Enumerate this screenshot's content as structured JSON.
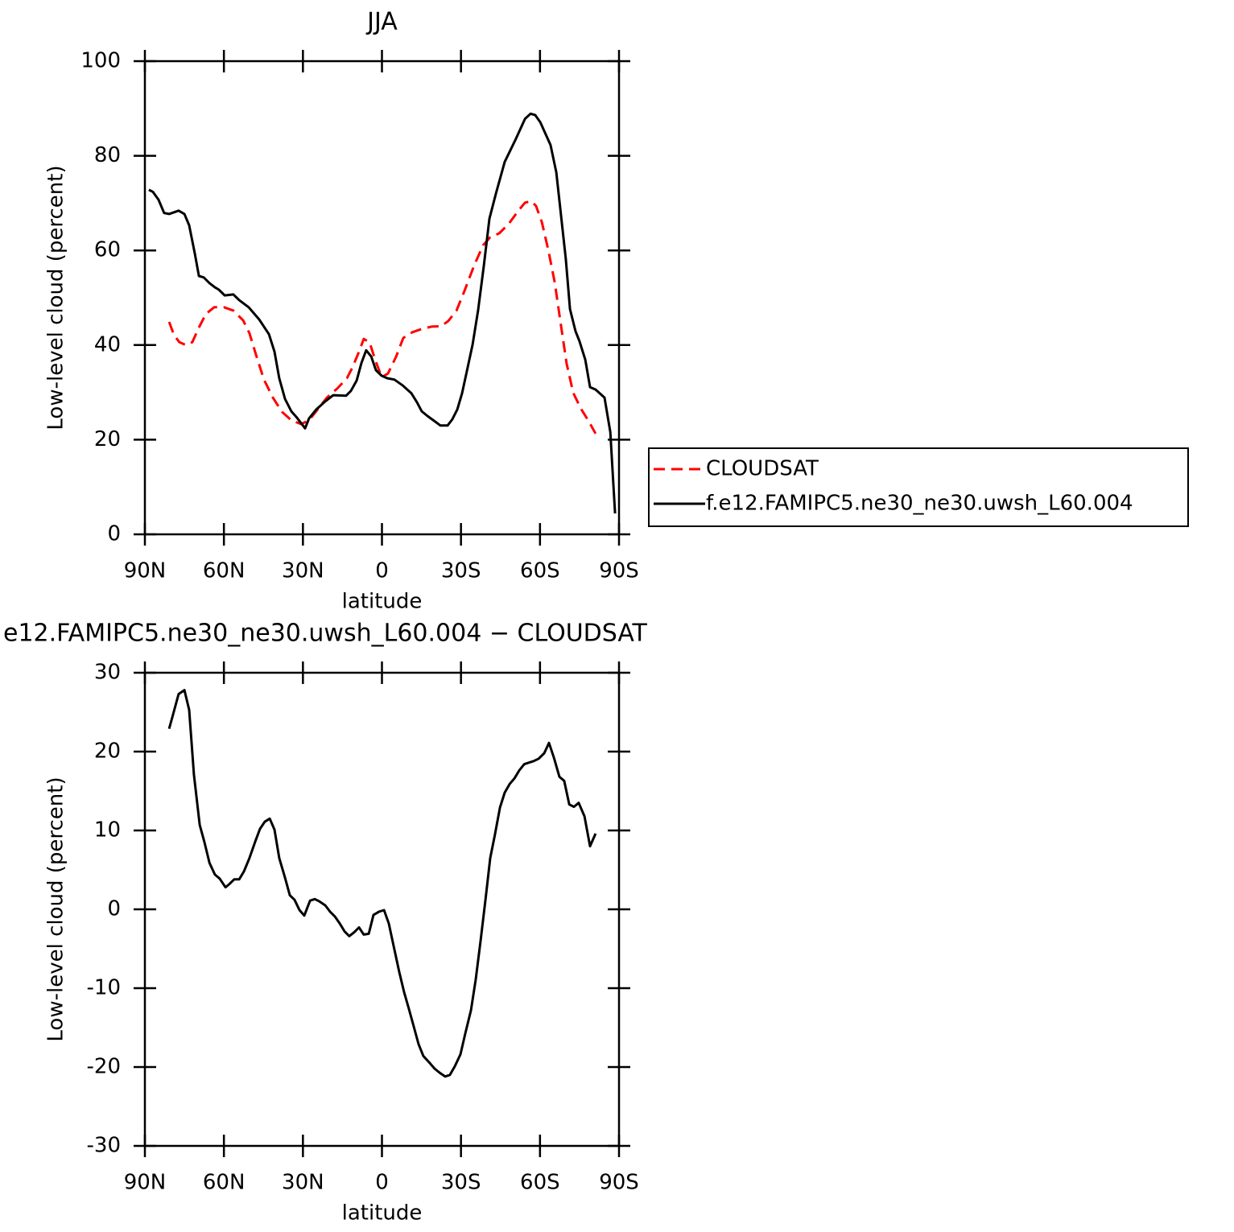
{
  "chart_data": [
    {
      "type": "line",
      "title": "JJA",
      "xlabel": "latitude",
      "ylabel": "Low-level cloud (percent)",
      "xlim": [
        90,
        -90
      ],
      "xticks": [
        {
          "value": 90,
          "label": "90N"
        },
        {
          "value": 60,
          "label": "60N"
        },
        {
          "value": 30,
          "label": "30N"
        },
        0,
        {
          "value": -30,
          "label": "30S"
        },
        {
          "value": -60,
          "label": "60S"
        },
        {
          "value": -90,
          "label": "90S"
        }
      ],
      "ylim": [
        0,
        100
      ],
      "yticks": [
        0,
        20,
        40,
        60,
        80,
        100
      ],
      "legend": "right",
      "series": [
        {
          "name": "CLOUDSAT",
          "color": "#ff0000",
          "style": "dashed",
          "x": [
            80.8,
            79.0,
            76.9,
            74.4,
            72.0,
            69.5,
            66.8,
            63.7,
            60.0,
            56.4,
            52.7,
            50.3,
            47.8,
            44.8,
            41.4,
            38.0,
            34.4,
            30.7,
            27.7,
            24.0,
            20.9,
            17.0,
            13.3,
            11.1,
            8.7,
            6.9,
            4.7,
            2.6,
            0.1,
            -2.3,
            -5.4,
            -8.1,
            -11.5,
            -15.1,
            -18.8,
            -22.5,
            -25.2,
            -28.3,
            -31.3,
            -35.0,
            -38.4,
            -41.1,
            -44.5,
            -48.1,
            -51.8,
            -54.3,
            -56.7,
            -58.5,
            -60.7,
            -63.1,
            -65.6,
            -67.7,
            -70.1,
            -72.6,
            -75.6,
            -78.4,
            -81.1
          ],
          "values": [
            44.9,
            42.2,
            40.6,
            40,
            40.6,
            43.7,
            46.6,
            48,
            48,
            47.3,
            45.2,
            42.5,
            37.9,
            32.7,
            28.9,
            25.9,
            24.1,
            23.3,
            24.1,
            26.7,
            28.9,
            30.8,
            33,
            35.4,
            38.6,
            41.3,
            40.6,
            36.9,
            33.2,
            34,
            37.6,
            41.5,
            42.7,
            43.4,
            43.9,
            44,
            45.1,
            47.3,
            51.4,
            56.8,
            61.1,
            62.8,
            63.6,
            65.6,
            68.4,
            70.1,
            70.4,
            69.4,
            66,
            60.2,
            53.2,
            45.2,
            36.1,
            29.9,
            26.5,
            24,
            21.3
          ]
        },
        {
          "name": "f.e12.FAMIPC5.ne30_ne30.uwsh_L60.004",
          "color": "#000000",
          "style": "solid",
          "x": [
            88.5,
            87,
            84.8,
            82.7,
            80.8,
            77.2,
            75,
            73.2,
            71,
            69.5,
            67.7,
            65.5,
            63.4,
            61.9,
            59.7,
            56.4,
            54.2,
            50.6,
            46.6,
            42.9,
            40.8,
            39,
            36.8,
            34.4,
            32.5,
            29.2,
            27.7,
            24.9,
            21.5,
            18.5,
            13.6,
            11.8,
            9.6,
            7.8,
            6.0,
            4.1,
            2.3,
            0.1,
            -2.0,
            -4.7,
            -7.8,
            -11.2,
            -13.3,
            -15.1,
            -17.3,
            -20.3,
            -22.2,
            -24.9,
            -26.7,
            -28.6,
            -30.4,
            -32.2,
            -34.4,
            -36.5,
            -38.7,
            -40.8,
            -43.3,
            -46.6,
            -50.6,
            -54.3,
            -56.4,
            -58.2,
            -60.1,
            -64.0,
            -66.2,
            -69.8,
            -71.4,
            -73.5,
            -75.0,
            -77.2,
            -79.0,
            -81.1,
            -84.5,
            -86.7,
            -88.5
          ],
          "values": [
            72.8,
            72.4,
            70.7,
            67.9,
            67.7,
            68.4,
            67.7,
            65.3,
            59.2,
            54.6,
            54.3,
            53.1,
            52.2,
            51.7,
            50.5,
            50.7,
            49.5,
            48,
            45.4,
            42.3,
            38.6,
            33,
            28.6,
            26,
            24.8,
            22.4,
            24.5,
            26.4,
            28.1,
            29.4,
            29.3,
            30.3,
            32.5,
            36.2,
            38.9,
            37.6,
            34.7,
            33.5,
            33,
            32.7,
            31.5,
            29.8,
            27.9,
            26,
            25,
            23.8,
            23,
            23,
            24.3,
            26.4,
            29.8,
            34.4,
            40.1,
            47.3,
            56.8,
            66.7,
            72.1,
            78.7,
            83.3,
            87.8,
            88.9,
            88.6,
            87.1,
            82.3,
            76.5,
            58.2,
            47.6,
            42.9,
            40.8,
            36.9,
            31.1,
            30.6,
            28.9,
            21.6,
            4.4
          ]
        }
      ]
    },
    {
      "type": "line",
      "title": "e12.FAMIPC5.ne30_ne30.uwsh_L60.004 − CLOUDSAT",
      "xlabel": "latitude",
      "ylabel": "Low-level cloud (percent)",
      "xlim": [
        90,
        -90
      ],
      "xticks": [
        {
          "value": 90,
          "label": "90N"
        },
        {
          "value": 60,
          "label": "60N"
        },
        {
          "value": 30,
          "label": "30N"
        },
        0,
        {
          "value": -30,
          "label": "30S"
        },
        {
          "value": -60,
          "label": "60S"
        },
        {
          "value": -90,
          "label": "90S"
        }
      ],
      "ylim": [
        -30,
        30
      ],
      "yticks": [
        -30,
        -20,
        -10,
        0,
        10,
        20,
        30
      ],
      "series": [
        {
          "color": "#000000",
          "style": "solid",
          "x": [
            80.8,
            79.3,
            77.2,
            75,
            73.2,
            71.4,
            69.2,
            67.4,
            65.5,
            63.4,
            61.6,
            59.4,
            57.9,
            56.1,
            54.2,
            52.4,
            50.3,
            48.1,
            46.3,
            44.5,
            42.6,
            40.8,
            39.0,
            36.8,
            35.0,
            33.2,
            31.3,
            29.5,
            27.3,
            25.5,
            23.7,
            21.5,
            19.7,
            17.9,
            16.0,
            14.2,
            12.4,
            10.5,
            8.7,
            6.9,
            5.0,
            3.2,
            1.1,
            -0.8,
            -2.6,
            -4.4,
            -6.6,
            -8.4,
            -10.2,
            -12.1,
            -13.9,
            -15.7,
            -17.9,
            -20.0,
            -22.2,
            -24.0,
            -25.8,
            -27.7,
            -29.8,
            -31.6,
            -33.8,
            -35.6,
            -37.4,
            -39.3,
            -41.1,
            -42.9,
            -44.8,
            -46.6,
            -48.5,
            -50.3,
            -52.1,
            -54.0,
            -55.8,
            -57.6,
            -59.5,
            -61.6,
            -63.4,
            -65.3,
            -67.4,
            -69.2,
            -71.1,
            -72.9,
            -74.7,
            -76.9,
            -79.0,
            -81.1
          ],
          "values": [
            22.9,
            24.7,
            27.3,
            27.8,
            25.3,
            17.1,
            10.7,
            8.5,
            5.9,
            4.4,
            3.9,
            2.8,
            3.2,
            3.8,
            3.8,
            4.8,
            6.5,
            8.6,
            10.2,
            11.1,
            11.5,
            10.1,
            6.5,
            4,
            1.8,
            1.2,
            -0.1,
            -0.8,
            1.1,
            1.3,
            1,
            0.5,
            -0.3,
            -0.9,
            -1.8,
            -2.8,
            -3.4,
            -2.9,
            -2.3,
            -3.2,
            -3.1,
            -0.7,
            -0.3,
            -0.1,
            -1.8,
            -4.6,
            -8,
            -10.5,
            -12.6,
            -14.9,
            -17.1,
            -18.6,
            -19.4,
            -20.2,
            -20.8,
            -21.2,
            -21.0,
            -19.9,
            -18.4,
            -15.8,
            -12.8,
            -8.9,
            -4.1,
            1.2,
            6.5,
            9.5,
            12.9,
            14.8,
            15.9,
            16.6,
            17.6,
            18.4,
            18.6,
            18.8,
            19.1,
            19.8,
            21.1,
            19.2,
            16.8,
            16.3,
            13.3,
            13,
            13.5,
            11.8,
            8,
            9.6
          ]
        }
      ]
    }
  ]
}
